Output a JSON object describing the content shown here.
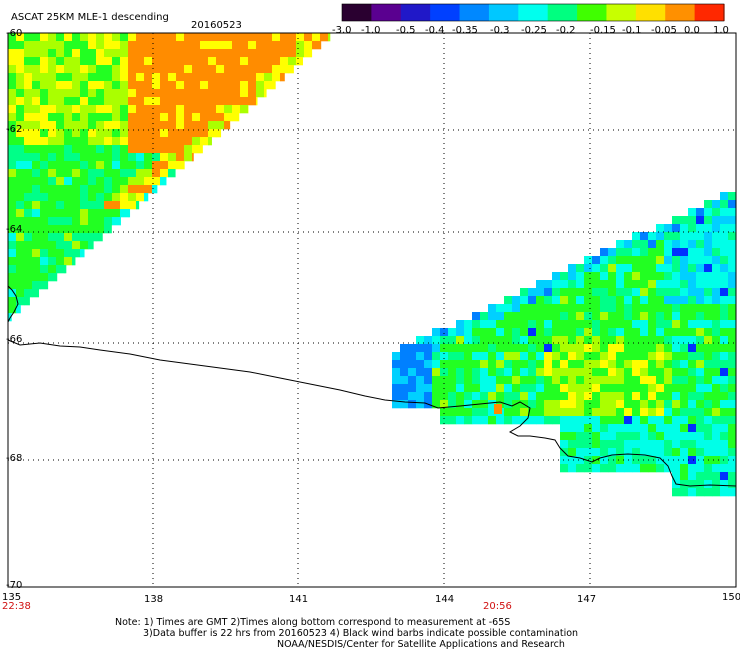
{
  "header": {
    "title": "ASCAT 25KM MLE-1 descending",
    "date": "20160523"
  },
  "colorbar": {
    "tick_labels": [
      "-3.0",
      "-1.0",
      "-0.5",
      "-0.4",
      "-0.35",
      "-0.3",
      "-0.25",
      "-0.2",
      "-0.15",
      "-0.1",
      "-0.05",
      "0.0",
      "1.0"
    ],
    "colors": [
      "#2a0030",
      "#5a0090",
      "#2018c8",
      "#0040ff",
      "#0088ff",
      "#00c8ff",
      "#00ffee",
      "#00ff80",
      "#40ff00",
      "#c8ff00",
      "#ffe000",
      "#ff9000",
      "#ff2800"
    ]
  },
  "map": {
    "lon_labels": [
      "135",
      "138",
      "141",
      "144",
      "147",
      "150"
    ],
    "lat_labels": [
      "-60",
      "-62",
      "-64",
      "-66",
      "-68",
      "-70"
    ],
    "time_labels": [
      "22:38",
      "20:56"
    ],
    "colors": {
      "orange": "#ff8c00",
      "yellow": "#ffff00",
      "yellow_green": "#aaff00",
      "green": "#22ff22",
      "spring_green": "#00ff88",
      "cyan": "#00ffe8",
      "sky": "#00d0ff",
      "blue": "#0080ff",
      "deep_blue": "#0030ff",
      "coast": "#000000",
      "grid": "#000000"
    }
  },
  "notes": {
    "line1": "Note: 1) Times are GMT 2)Times along bottom correspond to measurement at -65S",
    "line2": "3)Data buffer is 22 hrs from 20160523 4) Black wind barbs indicate possible contamination",
    "line3": "NOAA/NESDIS/Center for Satellite Applications and Research"
  }
}
